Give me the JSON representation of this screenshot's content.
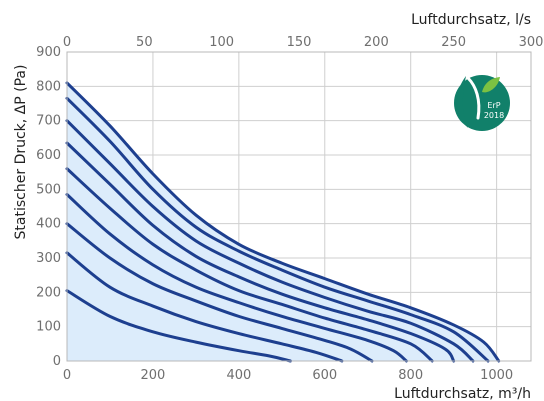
{
  "chart_data": {
    "type": "line",
    "title": "",
    "xlabel": "Luftdurchsatz, m³/h",
    "x2label": "Luftdurchsatz, l/s",
    "ylabel": "Statischer Druck, ΔP (Pa)",
    "xlim": [
      0,
      1080
    ],
    "ylim": [
      0,
      900
    ],
    "x2lim": [
      0,
      300
    ],
    "xticks": [
      "0",
      "200",
      "400",
      "600",
      "800",
      "1000"
    ],
    "yticks": [
      "0",
      "100",
      "200",
      "300",
      "400",
      "500",
      "600",
      "700",
      "800",
      "900"
    ],
    "x2ticks": [
      "0",
      "50",
      "100",
      "150",
      "200",
      "250",
      "300"
    ],
    "grid": true,
    "fill_color": "#dcecfb",
    "line_color": "#1d3f8f",
    "series": [
      {
        "x": [
          0,
          100,
          200,
          300,
          400,
          470,
          520
        ],
        "y": [
          205,
          130,
          85,
          55,
          30,
          15,
          0
        ]
      },
      {
        "x": [
          0,
          100,
          200,
          300,
          400,
          500,
          580,
          640
        ],
        "y": [
          315,
          215,
          160,
          115,
          80,
          50,
          25,
          0
        ]
      },
      {
        "x": [
          0,
          100,
          200,
          300,
          400,
          500,
          600,
          660,
          710
        ],
        "y": [
          400,
          300,
          225,
          175,
          130,
          95,
          60,
          35,
          0
        ]
      },
      {
        "x": [
          0,
          100,
          200,
          300,
          400,
          500,
          600,
          700,
          760,
          790
        ],
        "y": [
          485,
          370,
          280,
          215,
          170,
          130,
          95,
          60,
          30,
          0
        ]
      },
      {
        "x": [
          0,
          100,
          200,
          300,
          400,
          500,
          600,
          700,
          800,
          850
        ],
        "y": [
          560,
          445,
          340,
          265,
          205,
          165,
          125,
          90,
          50,
          0
        ]
      },
      {
        "x": [
          0,
          100,
          200,
          300,
          400,
          500,
          600,
          700,
          800,
          880,
          900
        ],
        "y": [
          635,
          515,
          395,
          305,
          245,
          195,
          155,
          120,
          80,
          35,
          0
        ]
      },
      {
        "x": [
          0,
          100,
          200,
          300,
          400,
          500,
          600,
          700,
          800,
          900,
          945
        ],
        "y": [
          700,
          575,
          450,
          350,
          285,
          230,
          185,
          145,
          110,
          50,
          0
        ]
      },
      {
        "x": [
          0,
          100,
          200,
          300,
          400,
          500,
          600,
          700,
          800,
          900,
          980
        ],
        "y": [
          765,
          640,
          500,
          390,
          320,
          265,
          215,
          175,
          135,
          85,
          0
        ]
      },
      {
        "x": [
          0,
          100,
          200,
          300,
          400,
          500,
          600,
          700,
          800,
          900,
          970,
          1005
        ],
        "y": [
          810,
          685,
          545,
          425,
          340,
          285,
          240,
          195,
          155,
          105,
          55,
          0
        ]
      }
    ]
  },
  "badge": {
    "label": "ErP",
    "year": "2018",
    "bg_color": "#11806a"
  }
}
